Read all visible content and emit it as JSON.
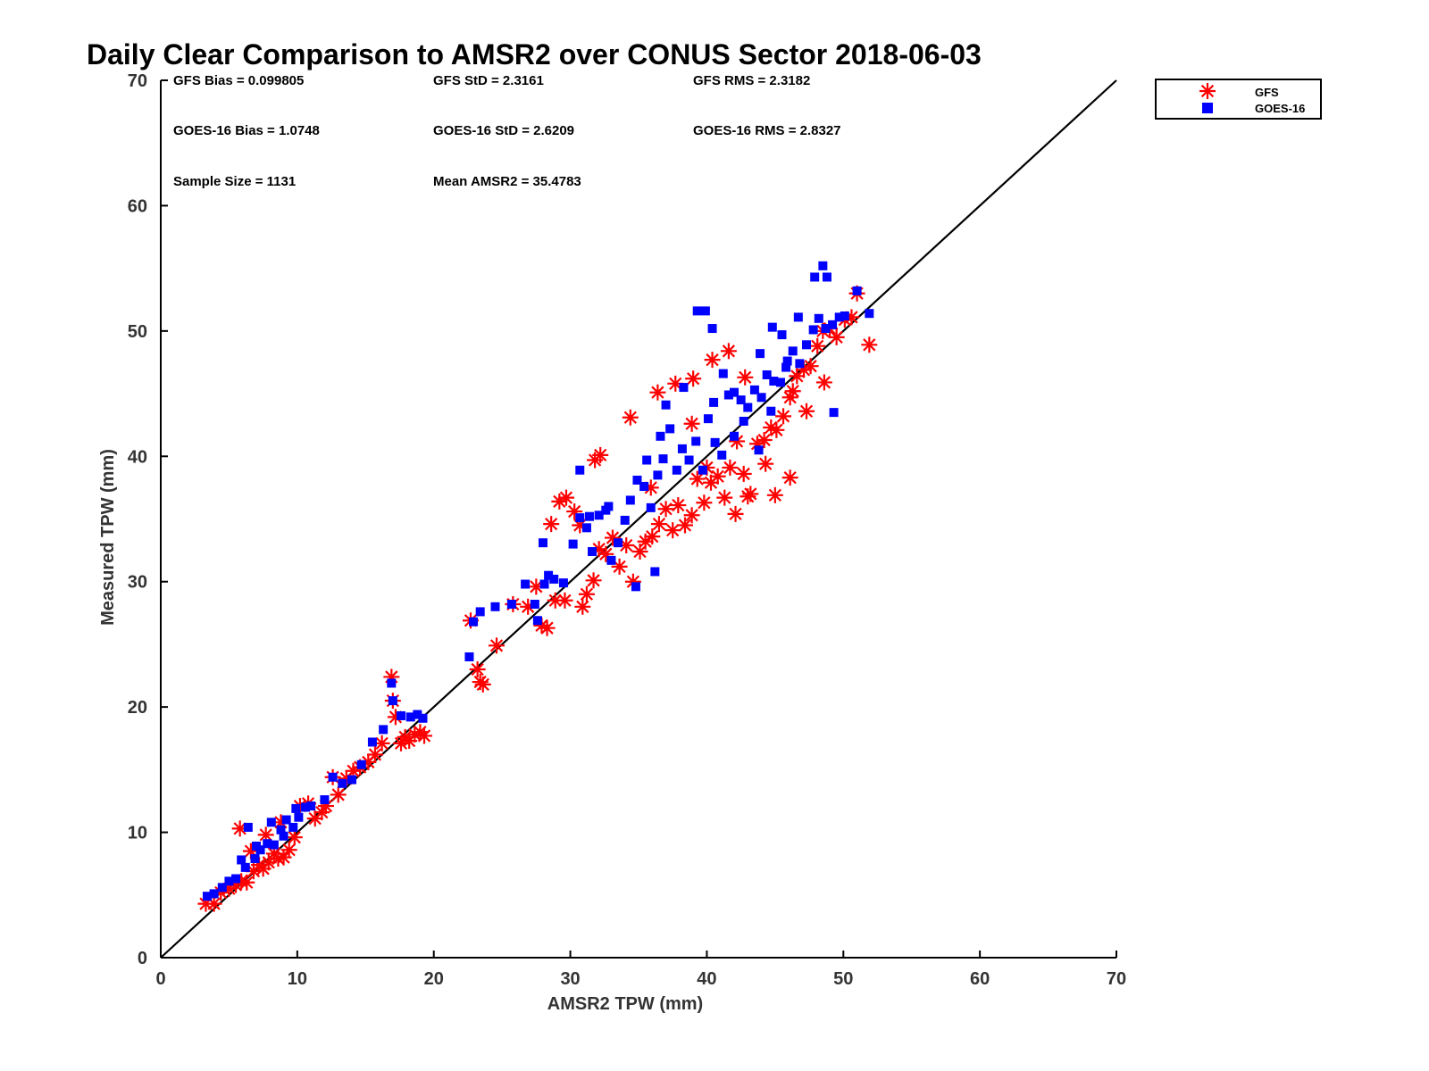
{
  "chart_data": {
    "type": "scatter",
    "title": "Daily Clear Comparison to AMSR2 over CONUS Sector 2018-06-03",
    "xlabel": "AMSR2 TPW (mm)",
    "ylabel": "Measured TPW (mm)",
    "xlim": [
      0,
      70
    ],
    "ylim": [
      0,
      70
    ],
    "xticks": [
      "0",
      "10",
      "20",
      "30",
      "40",
      "50",
      "60",
      "70"
    ],
    "yticks": [
      "0",
      "10",
      "20",
      "30",
      "40",
      "50",
      "60",
      "70"
    ],
    "grid": false,
    "legend_position": "outside-top-right",
    "reference_line": {
      "x": [
        0,
        70
      ],
      "y": [
        0,
        70
      ],
      "color": "#000000"
    },
    "stats": [
      "GFS Bias = 0.099805",
      "GFS StD = 2.3161",
      "GFS RMS = 2.3182",
      "GOES-16 Bias = 1.0748",
      "GOES-16 StD = 2.6209",
      "GOES-16 RMS = 2.8327",
      "Sample Size = 1131",
      "Mean AMSR2 = 35.4783"
    ],
    "series": [
      {
        "name": "GFS",
        "marker": "asterisk",
        "color": "#ff0000",
        "x": [
          3.3,
          3.9,
          4.4,
          5.0,
          5.5,
          5.9,
          6.3,
          6.8,
          7.2,
          7.5,
          7.9,
          8.3,
          8.6,
          9.0,
          9.4,
          9.8,
          5.8,
          6.6,
          7.7,
          8.8,
          10.2,
          10.8,
          11.3,
          11.8,
          12.1,
          12.6,
          13.0,
          13.6,
          14.1,
          14.6,
          15.2,
          15.7,
          16.2,
          16.9,
          17.0,
          17.2,
          17.6,
          17.9,
          18.2,
          18.6,
          19.0,
          19.3,
          22.7,
          23.2,
          23.6,
          23.4,
          24.6,
          25.8,
          26.9,
          27.5,
          27.9,
          28.3,
          28.9,
          29.6,
          29.2,
          30.3,
          30.7,
          31.2,
          31.7,
          32.1,
          32.6,
          33.1,
          33.6,
          34.1,
          34.6,
          35.1,
          35.5,
          34.4,
          36.0,
          36.5,
          37.0,
          37.5,
          37.9,
          38.4,
          38.9,
          39.3,
          39.8,
          40.3,
          40.8,
          41.3,
          41.7,
          42.2,
          42.7,
          43.2,
          43.7,
          44.2,
          44.7,
          45.1,
          45.6,
          46.1,
          46.3,
          46.6,
          47.1,
          47.6,
          48.1,
          48.5,
          49.0,
          49.5,
          50.1,
          50.6,
          51.0,
          51.9,
          45.0,
          46.1,
          31.8,
          32.2,
          28.6,
          30.9,
          29.7,
          39.0,
          40.4,
          41.6,
          42.1,
          43.0,
          36.4,
          37.7,
          38.9,
          40.0,
          44.3,
          47.3,
          48.6,
          42.8,
          35.9
        ],
        "y": [
          4.3,
          4.3,
          5.2,
          5.5,
          5.8,
          6.1,
          6.0,
          6.9,
          7.4,
          7.1,
          7.6,
          8.3,
          7.9,
          8.0,
          8.6,
          9.6,
          10.3,
          8.5,
          9.8,
          10.8,
          12.1,
          12.3,
          11.1,
          11.6,
          12.1,
          14.4,
          13.0,
          14.3,
          14.9,
          15.2,
          15.6,
          16.2,
          17.1,
          22.4,
          20.5,
          19.2,
          17.1,
          17.6,
          17.3,
          17.8,
          18.0,
          17.7,
          26.9,
          23.0,
          21.8,
          22.0,
          24.9,
          28.2,
          28.0,
          29.6,
          26.5,
          26.3,
          28.5,
          28.5,
          36.4,
          35.6,
          34.5,
          29.0,
          30.1,
          32.6,
          32.2,
          33.5,
          31.2,
          32.9,
          30.0,
          32.4,
          33.2,
          43.1,
          33.6,
          34.6,
          35.8,
          34.1,
          36.1,
          34.5,
          35.3,
          38.2,
          36.3,
          37.9,
          38.4,
          36.7,
          39.1,
          41.2,
          38.6,
          37.0,
          41.0,
          41.3,
          42.3,
          42.1,
          43.2,
          44.7,
          45.2,
          46.4,
          46.9,
          47.2,
          48.8,
          50.0,
          50.2,
          49.5,
          50.9,
          51.1,
          53.0,
          48.9,
          36.9,
          38.3,
          39.7,
          40.1,
          34.6,
          28.0,
          36.7,
          46.2,
          47.7,
          48.4,
          35.4,
          36.8,
          45.1,
          45.8,
          42.6,
          39.1,
          39.4,
          43.6,
          45.9,
          46.3,
          37.5
        ]
      },
      {
        "name": "GOES-16",
        "marker": "square",
        "color": "#0000ff",
        "x": [
          3.4,
          3.9,
          4.5,
          5.0,
          5.5,
          5.9,
          6.4,
          6.9,
          7.3,
          7.8,
          8.3,
          8.8,
          9.2,
          9.7,
          10.1,
          10.6,
          11.0,
          6.2,
          7.0,
          8.1,
          9.0,
          9.9,
          12.0,
          12.6,
          13.3,
          14.0,
          14.7,
          15.5,
          16.3,
          16.9,
          17.0,
          17.6,
          18.3,
          18.8,
          19.2,
          22.6,
          22.9,
          23.4,
          24.5,
          25.7,
          26.7,
          27.6,
          28.0,
          28.4,
          28.8,
          29.5,
          30.2,
          30.7,
          31.2,
          31.6,
          32.1,
          32.6,
          33.0,
          33.5,
          34.0,
          34.4,
          34.9,
          35.4,
          35.9,
          36.4,
          36.8,
          37.3,
          37.8,
          38.2,
          38.7,
          39.2,
          39.7,
          40.1,
          40.6,
          41.1,
          41.6,
          42.0,
          42.5,
          43.0,
          43.5,
          44.0,
          44.4,
          44.9,
          45.4,
          45.8,
          46.3,
          46.8,
          47.3,
          47.8,
          48.2,
          48.7,
          49.2,
          49.7,
          50.1,
          51.0,
          51.9,
          47.9,
          48.5,
          48.8,
          46.7,
          43.9,
          42.0,
          40.5,
          39.3,
          39.9,
          40.4,
          35.6,
          36.6,
          38.3,
          37.0,
          32.8,
          31.4,
          30.7,
          28.1,
          27.4,
          44.8,
          45.5,
          49.3,
          41.2,
          42.7,
          43.8,
          44.7,
          45.9,
          34.8,
          36.2
        ],
        "y": [
          4.9,
          5.1,
          5.6,
          6.1,
          6.3,
          7.8,
          10.4,
          7.9,
          8.6,
          9.1,
          9.0,
          10.2,
          11.0,
          10.4,
          11.2,
          12.0,
          12.1,
          7.2,
          8.9,
          10.8,
          9.7,
          11.9,
          12.6,
          14.4,
          13.9,
          14.2,
          15.4,
          17.2,
          18.2,
          21.9,
          20.5,
          19.3,
          19.2,
          19.4,
          19.1,
          24.0,
          26.8,
          27.6,
          28.0,
          28.2,
          29.8,
          26.9,
          33.1,
          30.5,
          30.2,
          29.9,
          33.0,
          35.1,
          34.3,
          32.4,
          35.3,
          35.7,
          31.7,
          33.1,
          34.9,
          36.5,
          38.1,
          37.6,
          35.9,
          38.5,
          39.8,
          42.2,
          38.9,
          40.6,
          39.7,
          41.2,
          38.9,
          43.0,
          41.1,
          40.1,
          44.9,
          41.6,
          44.5,
          43.9,
          45.3,
          44.7,
          46.5,
          46.0,
          45.9,
          47.1,
          48.4,
          47.4,
          48.9,
          50.1,
          51.0,
          50.2,
          50.5,
          51.1,
          51.2,
          53.2,
          51.4,
          54.3,
          55.2,
          54.3,
          51.1,
          48.2,
          45.1,
          44.3,
          51.6,
          51.6,
          50.2,
          39.7,
          41.6,
          45.5,
          44.1,
          36.0,
          35.2,
          38.9,
          29.8,
          28.2,
          50.3,
          49.7,
          43.5,
          46.6,
          42.8,
          40.5,
          43.6,
          47.6,
          29.6,
          30.8
        ]
      }
    ]
  }
}
